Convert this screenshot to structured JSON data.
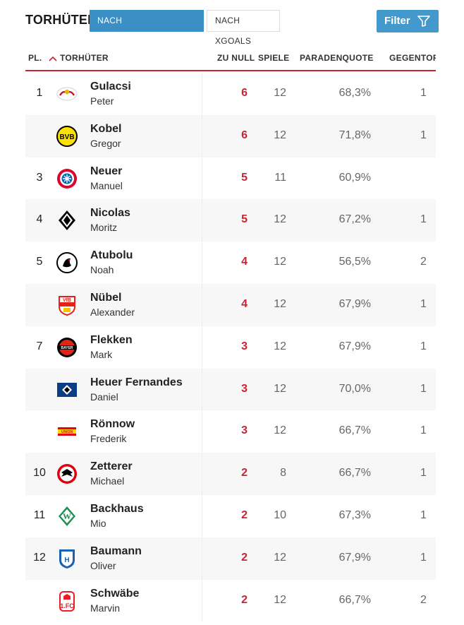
{
  "header": {
    "title": "TORHÜTER",
    "tab_paraden": "NACH PARADENQUOTEN",
    "tab_xgoals": "NACH XGOALS",
    "filter_label": "Filter"
  },
  "columns": {
    "rank": "PL.",
    "player": "TORHÜTER",
    "clean_sheets": "ZU NULL",
    "games": "SPIELE",
    "save_rate": "PARADENQUOTE",
    "goals_against": "GEGENTOR"
  },
  "rows": [
    {
      "rank": "1",
      "last": "Gulacsi",
      "first": "Peter",
      "cs": "6",
      "games": "12",
      "quote": "68,3%",
      "ga": "1",
      "logo": "rb-leipzig"
    },
    {
      "rank": "",
      "last": "Kobel",
      "first": "Gregor",
      "cs": "6",
      "games": "12",
      "quote": "71,8%",
      "ga": "1",
      "logo": "bvb"
    },
    {
      "rank": "3",
      "last": "Neuer",
      "first": "Manuel",
      "cs": "5",
      "games": "11",
      "quote": "60,9%",
      "ga": "",
      "logo": "bayern"
    },
    {
      "rank": "4",
      "last": "Nicolas",
      "first": "Moritz",
      "cs": "5",
      "games": "12",
      "quote": "67,2%",
      "ga": "1",
      "logo": "gladbach"
    },
    {
      "rank": "5",
      "last": "Atubolu",
      "first": "Noah",
      "cs": "4",
      "games": "12",
      "quote": "56,5%",
      "ga": "2",
      "logo": "freiburg"
    },
    {
      "rank": "",
      "last": "Nübel",
      "first": "Alexander",
      "cs": "4",
      "games": "12",
      "quote": "67,9%",
      "ga": "1",
      "logo": "stuttgart"
    },
    {
      "rank": "7",
      "last": "Flekken",
      "first": "Mark",
      "cs": "3",
      "games": "12",
      "quote": "67,9%",
      "ga": "1",
      "logo": "leverkusen"
    },
    {
      "rank": "",
      "last": "Heuer Fernandes",
      "first": "Daniel",
      "cs": "3",
      "games": "12",
      "quote": "70,0%",
      "ga": "1",
      "logo": "hsv"
    },
    {
      "rank": "",
      "last": "Rönnow",
      "first": "Frederik",
      "cs": "3",
      "games": "12",
      "quote": "66,7%",
      "ga": "1",
      "logo": "union"
    },
    {
      "rank": "10",
      "last": "Zetterer",
      "first": "Michael",
      "cs": "2",
      "games": "8",
      "quote": "66,7%",
      "ga": "1",
      "logo": "frankfurt"
    },
    {
      "rank": "11",
      "last": "Backhaus",
      "first": "Mio",
      "cs": "2",
      "games": "10",
      "quote": "67,3%",
      "ga": "1",
      "logo": "bremen"
    },
    {
      "rank": "12",
      "last": "Baumann",
      "first": "Oliver",
      "cs": "2",
      "games": "12",
      "quote": "67,9%",
      "ga": "1",
      "logo": "hoffenheim"
    },
    {
      "rank": "",
      "last": "Schwäbe",
      "first": "Marvin",
      "cs": "2",
      "games": "12",
      "quote": "66,7%",
      "ga": "2",
      "logo": "koeln"
    }
  ],
  "colors": {
    "accent": "#3b8fc4",
    "highlight": "#c82333"
  }
}
